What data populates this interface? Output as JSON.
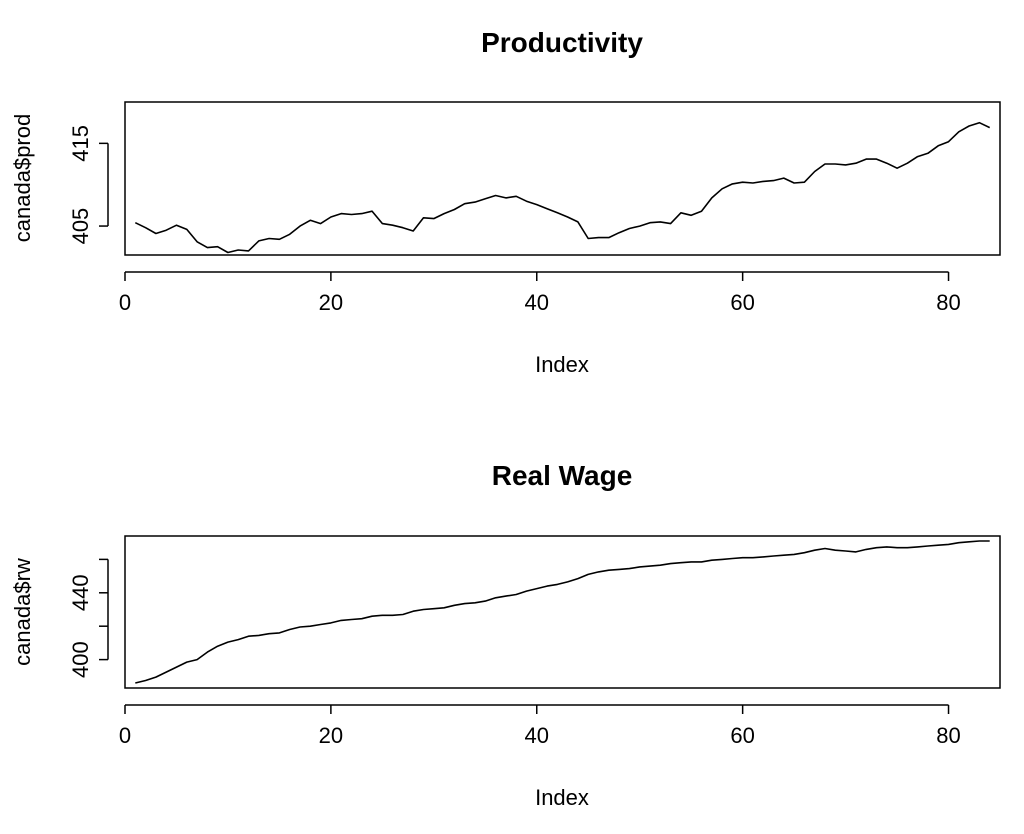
{
  "chart_data": [
    {
      "type": "line",
      "title": "Productivity",
      "xlabel": "Index",
      "ylabel": "canada$prod",
      "xlim": [
        0,
        85
      ],
      "ylim": [
        401.5,
        420
      ],
      "xticks": [
        0,
        20,
        40,
        60,
        80
      ],
      "yticks": [
        405,
        415
      ],
      "grid": false,
      "x": [
        1,
        2,
        3,
        4,
        5,
        6,
        7,
        8,
        9,
        10,
        11,
        12,
        13,
        14,
        15,
        16,
        17,
        18,
        19,
        20,
        21,
        22,
        23,
        24,
        25,
        26,
        27,
        28,
        29,
        30,
        31,
        32,
        33,
        34,
        35,
        36,
        37,
        38,
        39,
        40,
        41,
        42,
        43,
        44,
        45,
        46,
        47,
        48,
        49,
        50,
        51,
        52,
        53,
        54,
        55,
        56,
        57,
        58,
        59,
        60,
        61,
        62,
        63,
        64,
        65,
        66,
        67,
        68,
        69,
        70,
        71,
        72,
        73,
        74,
        75,
        76,
        77,
        78,
        79,
        80,
        81,
        82,
        83,
        84
      ],
      "series": [
        {
          "values": [
            405.4,
            404.8,
            404.1,
            404.5,
            405.1,
            404.6,
            403.1,
            402.4,
            402.5,
            401.8,
            402.1,
            402.0,
            403.2,
            403.5,
            403.4,
            404.0,
            405.0,
            405.7,
            405.3,
            406.1,
            406.5,
            406.4,
            406.5,
            406.8,
            405.3,
            405.1,
            404.8,
            404.4,
            406.0,
            405.9,
            406.5,
            407.0,
            407.7,
            407.9,
            408.3,
            408.7,
            408.4,
            408.6,
            408.0,
            407.6,
            407.1,
            406.6,
            406.1,
            405.5,
            403.5,
            403.6,
            403.6,
            404.2,
            404.7,
            405.0,
            405.4,
            405.5,
            405.3,
            406.6,
            406.3,
            406.8,
            408.4,
            409.5,
            410.1,
            410.3,
            410.2,
            410.4,
            410.5,
            410.8,
            410.2,
            410.3,
            411.6,
            412.5,
            412.5,
            412.4,
            412.6,
            413.1,
            413.1,
            412.6,
            412.0,
            412.6,
            413.4,
            413.8,
            414.7,
            415.2,
            416.4,
            417.1,
            417.5,
            416.9
          ]
        }
      ]
    },
    {
      "type": "line",
      "title": "Real Wage",
      "xlabel": "Index",
      "ylabel": "canada$rw",
      "xlim": [
        0,
        85
      ],
      "ylim": [
        383,
        474
      ],
      "xticks": [
        0,
        20,
        40,
        60,
        80
      ],
      "yticks": [
        400,
        420,
        440,
        460
      ],
      "yticklabels": [
        "400",
        "",
        "440",
        ""
      ],
      "grid": false,
      "x": [
        1,
        2,
        3,
        4,
        5,
        6,
        7,
        8,
        9,
        10,
        11,
        12,
        13,
        14,
        15,
        16,
        17,
        18,
        19,
        20,
        21,
        22,
        23,
        24,
        25,
        26,
        27,
        28,
        29,
        30,
        31,
        32,
        33,
        34,
        35,
        36,
        37,
        38,
        39,
        40,
        41,
        42,
        43,
        44,
        45,
        46,
        47,
        48,
        49,
        50,
        51,
        52,
        53,
        54,
        55,
        56,
        57,
        58,
        59,
        60,
        61,
        62,
        63,
        64,
        65,
        66,
        67,
        68,
        69,
        70,
        71,
        72,
        73,
        74,
        75,
        76,
        77,
        78,
        79,
        80,
        81,
        82,
        83,
        84
      ],
      "series": [
        {
          "values": [
            386.0,
            387.5,
            389.5,
            392.5,
            395.5,
            398.5,
            400.0,
            404.5,
            408.0,
            410.5,
            412.0,
            414.0,
            414.5,
            415.5,
            416.0,
            418.0,
            419.5,
            420.0,
            421.0,
            422.0,
            423.5,
            424.0,
            424.5,
            426.0,
            426.5,
            426.5,
            427.0,
            429.0,
            430.0,
            430.5,
            431.0,
            432.5,
            433.5,
            434.0,
            435.0,
            437.0,
            438.0,
            439.0,
            441.0,
            442.5,
            444.0,
            445.0,
            446.5,
            448.5,
            451.0,
            452.5,
            453.5,
            454.0,
            454.5,
            455.5,
            456.0,
            456.5,
            457.5,
            458.0,
            458.5,
            458.5,
            459.5,
            460.0,
            460.5,
            461.0,
            461.0,
            461.5,
            462.0,
            462.5,
            463.0,
            464.0,
            465.5,
            466.5,
            465.5,
            465.0,
            464.5,
            466.0,
            467.0,
            467.5,
            467.0,
            467.0,
            467.5,
            468.0,
            468.5,
            469.0,
            470.0,
            470.5,
            471.0,
            471.0
          ]
        }
      ]
    }
  ]
}
